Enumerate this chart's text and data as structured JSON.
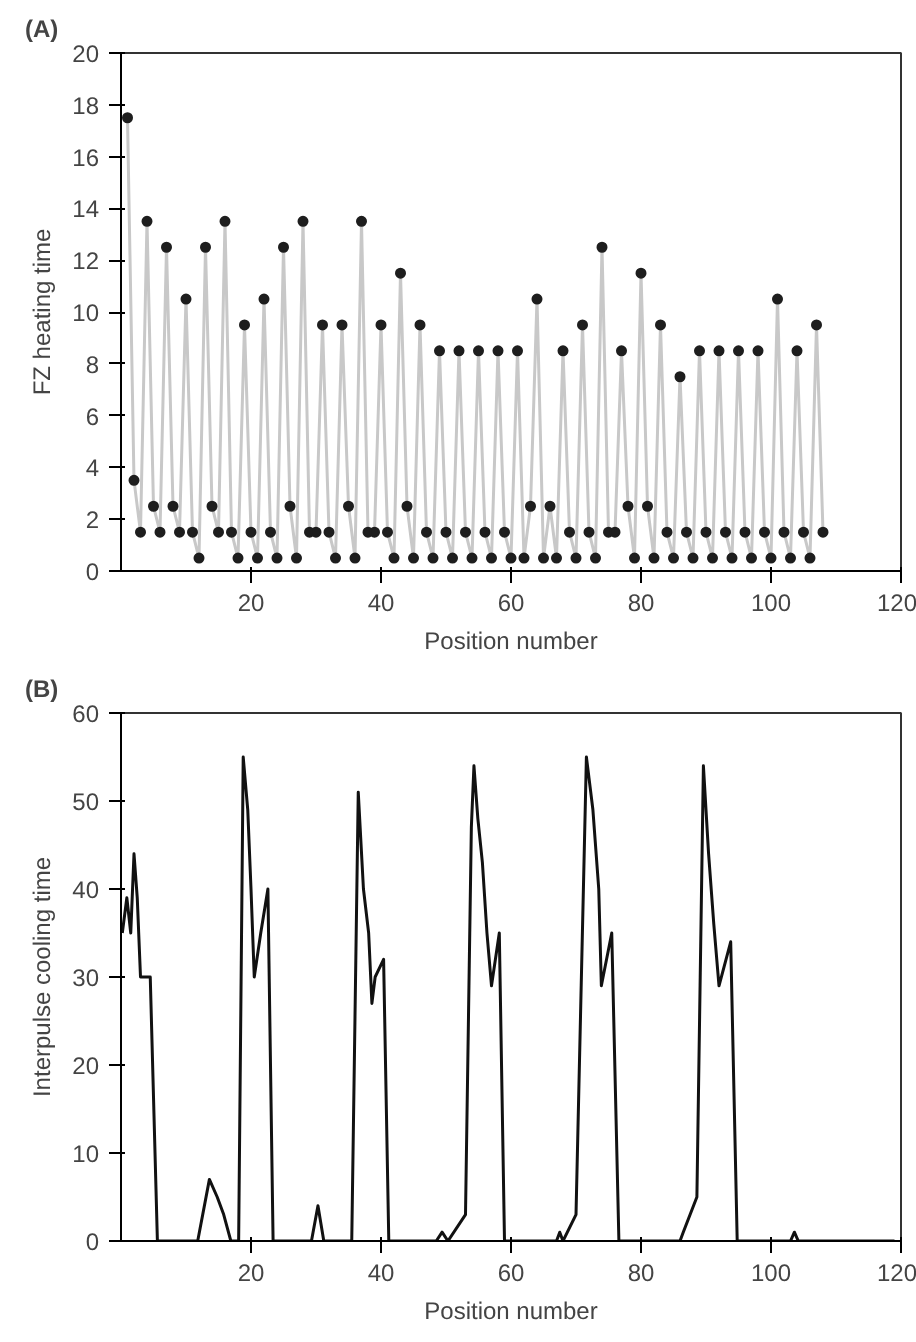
{
  "chart_data": [
    {
      "type": "scatter",
      "title": "(A)",
      "xlabel": "Position number",
      "ylabel": "FZ heating time",
      "xlim": [
        0,
        120
      ],
      "ylim": [
        0,
        20
      ],
      "xticks": [
        20,
        40,
        60,
        80,
        100,
        120
      ],
      "yticks": [
        0,
        2,
        4,
        6,
        8,
        10,
        12,
        14,
        16,
        18,
        20
      ],
      "grid": false,
      "marker": "circle",
      "x": [
        1,
        2,
        3,
        4,
        5,
        6,
        7,
        8,
        9,
        10,
        11,
        12,
        13,
        14,
        15,
        16,
        17,
        18,
        19,
        20,
        21,
        22,
        23,
        24,
        25,
        26,
        27,
        28,
        29,
        30,
        31,
        32,
        33,
        34,
        35,
        36,
        37,
        38,
        39,
        40,
        41,
        42,
        43,
        44,
        45,
        46,
        47,
        48,
        49,
        50,
        51,
        52,
        53,
        54,
        55,
        56,
        57,
        58,
        59,
        60,
        61,
        62,
        63,
        64,
        65,
        66,
        67,
        68,
        69,
        70,
        71,
        72,
        73,
        74,
        75,
        76,
        77,
        78,
        79,
        80,
        81,
        82,
        83,
        84,
        85,
        86,
        87,
        88,
        89,
        90,
        91,
        92,
        93,
        94,
        95,
        96,
        97,
        98,
        99,
        100,
        101,
        102,
        103,
        104,
        105,
        106,
        107,
        108
      ],
      "series": [
        {
          "type": "line",
          "color": "#c8c8c8",
          "values": [
            17.5,
            3.5,
            1.5,
            13.5,
            2.5,
            1.5,
            12.5,
            2.5,
            1.5,
            10.5,
            1.5,
            0.5,
            12.5,
            2.5,
            1.5,
            13.5,
            1.5,
            0.5,
            9.5,
            1.5,
            0.5,
            10.5,
            1.5,
            0.5,
            12.5,
            2.5,
            0.5,
            13.5,
            1.5,
            1.5,
            9.5,
            1.5,
            0.5,
            9.5,
            2.5,
            0.5,
            13.5,
            1.5,
            1.5,
            9.5,
            1.5,
            0.5,
            11.5,
            2.5,
            0.5,
            9.5,
            1.5,
            0.5,
            8.5,
            1.5,
            0.5,
            8.5,
            1.5,
            0.5,
            8.5,
            1.5,
            0.5,
            8.5,
            1.5,
            0.5,
            8.5,
            0.5,
            2.5,
            10.5,
            0.5,
            2.5,
            0.5,
            8.5,
            1.5,
            0.5,
            9.5,
            1.5,
            0.5,
            12.5,
            1.5,
            1.5,
            8.5,
            2.5,
            0.5,
            11.5,
            2.5,
            0.5,
            9.5,
            1.5,
            0.5,
            7.5,
            1.5,
            0.5,
            8.5,
            1.5,
            0.5,
            8.5,
            1.5,
            0.5,
            8.5,
            1.5,
            0.5,
            8.5,
            1.5,
            0.5,
            10.5,
            1.5,
            0.5,
            8.5,
            1.5,
            0.5,
            9.5,
            1.5
          ]
        },
        {
          "type": "scatter",
          "color": "#1e1e1e",
          "values": [
            17.5,
            3.5,
            1.5,
            13.5,
            2.5,
            1.5,
            12.5,
            2.5,
            1.5,
            10.5,
            1.5,
            0.5,
            12.5,
            2.5,
            1.5,
            13.5,
            1.5,
            0.5,
            9.5,
            1.5,
            0.5,
            10.5,
            1.5,
            0.5,
            12.5,
            2.5,
            0.5,
            13.5,
            1.5,
            1.5,
            9.5,
            1.5,
            0.5,
            9.5,
            2.5,
            0.5,
            13.5,
            1.5,
            1.5,
            9.5,
            1.5,
            0.5,
            11.5,
            2.5,
            0.5,
            9.5,
            1.5,
            0.5,
            8.5,
            1.5,
            0.5,
            8.5,
            1.5,
            0.5,
            8.5,
            1.5,
            0.5,
            8.5,
            1.5,
            0.5,
            8.5,
            0.5,
            2.5,
            10.5,
            0.5,
            2.5,
            0.5,
            8.5,
            1.5,
            0.5,
            9.5,
            1.5,
            0.5,
            12.5,
            1.5,
            1.5,
            8.5,
            2.5,
            0.5,
            11.5,
            2.5,
            0.5,
            9.5,
            1.5,
            0.5,
            7.5,
            1.5,
            0.5,
            8.5,
            1.5,
            0.5,
            8.5,
            1.5,
            0.5,
            8.5,
            1.5,
            0.5,
            8.5,
            1.5,
            0.5,
            10.5,
            1.5,
            0.5,
            8.5,
            1.5,
            0.5,
            9.5,
            1.5
          ]
        }
      ]
    },
    {
      "type": "line",
      "title": "(B)",
      "xlabel": "Position number",
      "ylabel": "Interpulse cooling time",
      "xlim": [
        0,
        120
      ],
      "ylim": [
        0,
        60
      ],
      "xticks": [
        20,
        40,
        60,
        80,
        100,
        120
      ],
      "yticks": [
        0,
        10,
        20,
        30,
        40,
        50,
        60
      ],
      "grid": false,
      "marker": "none",
      "series": [
        {
          "color": "#111111",
          "x": [
            0.2,
            0.9,
            1.5,
            2,
            2.5,
            3,
            4.5,
            5.6,
            11.8,
            13.6,
            14.8,
            15.8,
            16.9,
            18.1,
            18.8,
            19.5,
            20,
            20.5,
            21.5,
            22.6,
            23.4,
            29.3,
            30.3,
            31.2,
            35.5,
            36.5,
            37.3,
            38.1,
            38.6,
            39.1,
            40.4,
            41.2,
            48.5,
            49.4,
            50.3,
            53,
            53.9,
            54.3,
            54.9,
            55.6,
            56.3,
            57,
            58.2,
            59,
            67,
            67.5,
            68,
            70,
            71.6,
            72.6,
            73.5,
            73.9,
            75.5,
            76.6,
            86,
            86.5,
            88.6,
            89.6,
            90.4,
            91.2,
            92,
            93.8,
            94.8,
            103,
            103.6,
            104.2,
            119
          ],
          "values": [
            35,
            39,
            35,
            44,
            39,
            30,
            30,
            0,
            0,
            7,
            5,
            3,
            0,
            0,
            55,
            49,
            40,
            30,
            35,
            40,
            0,
            0,
            4,
            0,
            0,
            51,
            40,
            35,
            27,
            30,
            32,
            0,
            0,
            1,
            0,
            3,
            47,
            54,
            48,
            43,
            35,
            29,
            35,
            0,
            0,
            1,
            0,
            3,
            55,
            49,
            40,
            29,
            35,
            0,
            0,
            1,
            5,
            54,
            44,
            36,
            29,
            34,
            0,
            0,
            1,
            0,
            0
          ]
        }
      ]
    }
  ]
}
